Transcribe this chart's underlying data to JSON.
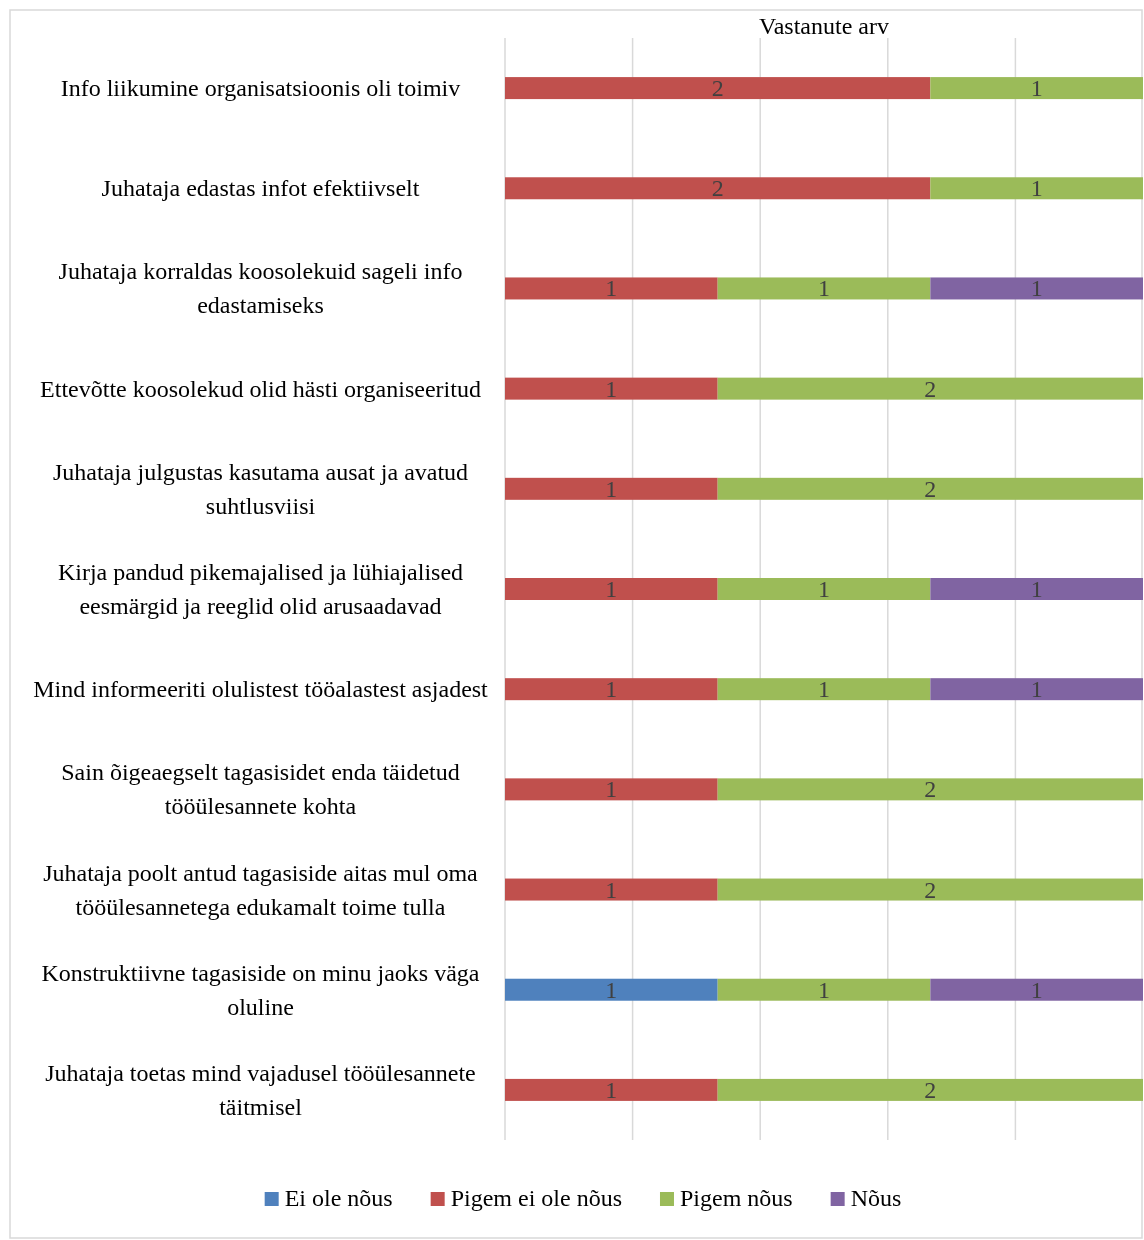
{
  "chart_data": {
    "type": "bar",
    "orientation": "horizontal",
    "stacked": true,
    "title": "Vastanute arv",
    "categories": [
      "Info liikumine organisatsioonis oli toimiv",
      "Juhataja edastas infot efektiivselt",
      "Juhataja korraldas koosolekuid sageli info edastamiseks",
      "Ettevõtte koosolekud olid hästi organiseeritud",
      "Juhataja julgustas kasutama ausat ja avatud suhtlusviisi",
      "Kirja pandud pikemajalised ja lühiajalised eesmärgid ja reeglid olid arusaadavad",
      "Mind informeeriti olulistest tööalastest asjadest",
      "Sain õigeaegselt tagasisidet enda täidetud tööülesannete kohta",
      "Juhataja poolt antud tagasiside aitas mul oma tööülesannetega edukamalt toime tulla",
      "Konstruktiivne tagasiside on minu jaoks väga oluline",
      "Juhataja toetas mind vajadusel tööülesannete täitmisel"
    ],
    "series": [
      {
        "name": "Ei ole nõus",
        "color": "#4f81bd",
        "values": [
          null,
          null,
          null,
          null,
          null,
          null,
          null,
          null,
          null,
          1,
          null
        ]
      },
      {
        "name": "Pigem ei ole nõus",
        "color": "#c0504d",
        "values": [
          2,
          2,
          1,
          1,
          1,
          1,
          1,
          1,
          1,
          null,
          1
        ]
      },
      {
        "name": "Pigem nõus",
        "color": "#9bbb59",
        "values": [
          1,
          1,
          1,
          2,
          2,
          1,
          1,
          2,
          2,
          1,
          2
        ]
      },
      {
        "name": "Nõus",
        "color": "#8064a2",
        "values": [
          null,
          null,
          1,
          null,
          null,
          1,
          1,
          null,
          null,
          1,
          null
        ]
      }
    ],
    "xlim": [
      0,
      3
    ],
    "xticks": [
      {
        "value": 0,
        "label": null
      },
      {
        "value": 0.6,
        "label": null
      },
      {
        "value": 1.2,
        "label": null
      },
      {
        "value": 1.8,
        "label": null
      },
      {
        "value": 2.4,
        "label": null
      }
    ],
    "tick_labels": "y",
    "grid": "x",
    "legend": "bottom",
    "data_labels": true
  }
}
